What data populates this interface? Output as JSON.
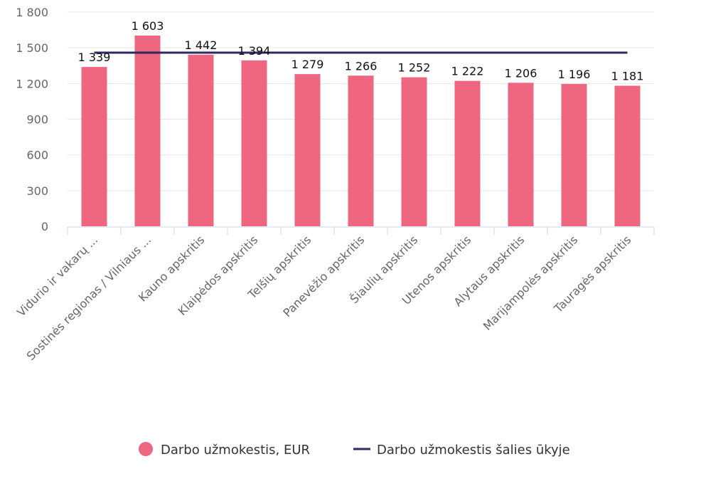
{
  "chart_data": {
    "type": "bar",
    "categories": [
      "Vidurio ir vakarų ...",
      "Sostinės regionas / Vilniaus ...",
      "Kauno apskritis",
      "Klaipėdos apskritis",
      "Telšių apskritis",
      "Panevėžio apskritis",
      "Šiaulių apskritis",
      "Utenos apskritis",
      "Alytaus apskritis",
      "Marijampolės apskritis",
      "Tauragės apskritis"
    ],
    "series": [
      {
        "name": "Darbo užmokestis, EUR",
        "type": "bar",
        "color": "#ef6681",
        "values": [
          1339,
          1603,
          1442,
          1394,
          1279,
          1266,
          1252,
          1222,
          1206,
          1196,
          1181
        ],
        "data_labels": [
          "1 339",
          "1 603",
          "1 442",
          "1 394",
          "1 279",
          "1 266",
          "1 252",
          "1 222",
          "1 206",
          "1 196",
          "1 181"
        ]
      },
      {
        "name": "Darbo užmokestis šalies ūkyje",
        "type": "line",
        "color": "#2d2a5f",
        "value": 1459
      }
    ],
    "ylim": [
      0,
      1800
    ],
    "yticks": [
      0,
      300,
      600,
      900,
      1200,
      1500,
      1800
    ],
    "ytick_labels": [
      "0",
      "300",
      "600",
      "900",
      "1 200",
      "1 500",
      "1 800"
    ],
    "grid": true,
    "legend_position": "bottom-center"
  }
}
